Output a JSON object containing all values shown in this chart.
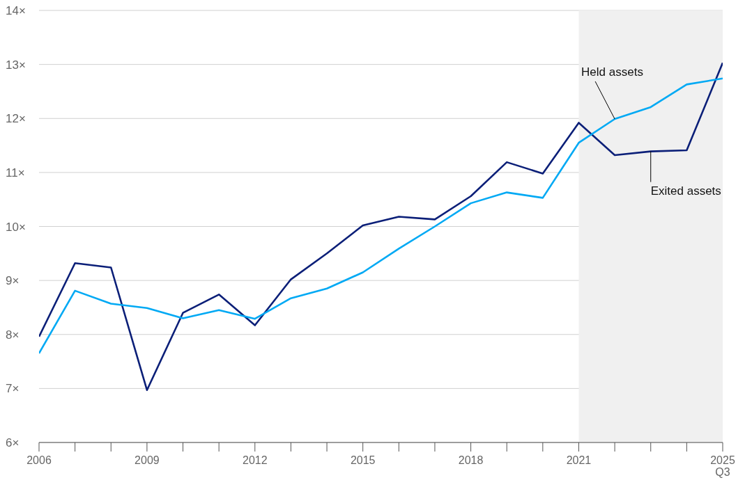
{
  "chart_data": {
    "type": "line",
    "x": [
      2006,
      2007,
      2008,
      2009,
      2010,
      2011,
      2012,
      2013,
      2014,
      2015,
      2016,
      2017,
      2018,
      2019,
      2020,
      2021,
      2022,
      2023,
      2024,
      2025
    ],
    "series": [
      {
        "name": "Exited assets",
        "color": "#0b1f78",
        "values": [
          7.96,
          9.32,
          9.24,
          6.97,
          8.4,
          8.74,
          8.17,
          9.02,
          9.5,
          10.02,
          10.18,
          10.13,
          10.56,
          11.19,
          10.98,
          11.92,
          11.32,
          11.39,
          11.41,
          13.03
        ]
      },
      {
        "name": "Held assets",
        "color": "#00a9f4",
        "values": [
          7.65,
          8.81,
          8.57,
          8.49,
          8.3,
          8.45,
          8.29,
          8.67,
          8.85,
          9.15,
          9.59,
          10.0,
          10.43,
          10.63,
          10.53,
          11.55,
          11.99,
          12.21,
          12.63,
          12.74
        ]
      }
    ],
    "xlim": [
      2006,
      2025
    ],
    "xticks": [
      2006,
      {
        "value": 2007,
        "label": null
      },
      {
        "value": 2008,
        "label": null
      },
      2009,
      {
        "value": 2010,
        "label": null
      },
      {
        "value": 2011,
        "label": null
      },
      2012,
      {
        "value": 2013,
        "label": null
      },
      {
        "value": 2014,
        "label": null
      },
      2015,
      {
        "value": 2016,
        "label": null
      },
      {
        "value": 2017,
        "label": null
      },
      2018,
      {
        "value": 2019,
        "label": null
      },
      {
        "value": 2020,
        "label": null
      },
      2021,
      {
        "value": 2022,
        "label": null
      },
      {
        "value": 2023,
        "label": null
      },
      {
        "value": 2024,
        "label": null
      },
      {
        "value": 2025,
        "label": "2025\nQ3"
      }
    ],
    "ylim": [
      6,
      14
    ],
    "yticks": [
      {
        "value": 6,
        "label": "6×"
      },
      {
        "value": 7,
        "label": "7×"
      },
      {
        "value": 8,
        "label": "8×"
      },
      {
        "value": 9,
        "label": "9×"
      },
      {
        "value": 10,
        "label": "10×"
      },
      {
        "value": 11,
        "label": "11×"
      },
      {
        "value": 12,
        "label": "12×"
      },
      {
        "value": 13,
        "label": "13×"
      },
      {
        "value": 14,
        "label": "14×"
      }
    ],
    "grid": "y",
    "legend": false,
    "marker": "none",
    "line_style": "solid",
    "bands": [
      {
        "axis": "x",
        "from": 2021,
        "to": 2025,
        "color": "#f0f0f0"
      }
    ]
  }
}
